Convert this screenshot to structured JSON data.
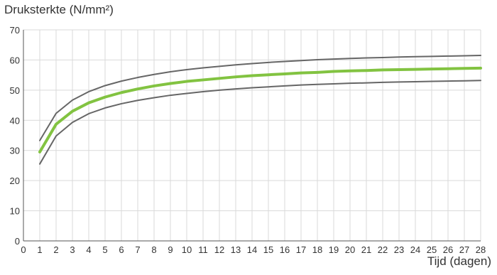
{
  "chart_data": {
    "type": "line",
    "title": "",
    "xlabel": "Tijd (dagen)",
    "ylabel": "Druksterkte (N/mm²)",
    "xlim": [
      0,
      28
    ],
    "ylim": [
      0,
      70
    ],
    "xticks": [
      0,
      1,
      2,
      3,
      4,
      5,
      6,
      7,
      8,
      9,
      10,
      11,
      12,
      13,
      14,
      15,
      16,
      17,
      18,
      19,
      20,
      21,
      22,
      23,
      24,
      25,
      26,
      27,
      28
    ],
    "yticks": [
      0,
      10,
      20,
      30,
      40,
      50,
      60,
      70
    ],
    "grid": true,
    "legend": "none",
    "x": [
      1,
      2,
      3,
      4,
      5,
      6,
      7,
      8,
      9,
      10,
      11,
      12,
      13,
      14,
      15,
      16,
      17,
      18,
      19,
      20,
      21,
      22,
      23,
      24,
      25,
      26,
      27,
      28
    ],
    "series": [
      {
        "color": "#666666",
        "values": [
          33.3,
          42.3,
          46.7,
          49.5,
          51.5,
          53.0,
          54.2,
          55.2,
          56.1,
          56.8,
          57.4,
          57.9,
          58.4,
          58.8,
          59.2,
          59.5,
          59.8,
          60.1,
          60.3,
          60.5,
          60.7,
          60.8,
          61.0,
          61.1,
          61.2,
          61.3,
          61.4,
          61.5
        ]
      },
      {
        "color": "#82c341",
        "values": [
          29.5,
          38.7,
          43.0,
          45.8,
          47.7,
          49.2,
          50.4,
          51.4,
          52.2,
          52.9,
          53.4,
          53.9,
          54.4,
          54.8,
          55.1,
          55.4,
          55.7,
          55.9,
          56.2,
          56.4,
          56.5,
          56.7,
          56.8,
          56.9,
          57.0,
          57.1,
          57.2,
          57.3
        ]
      },
      {
        "color": "#666666",
        "values": [
          25.5,
          34.8,
          39.3,
          42.2,
          44.1,
          45.5,
          46.6,
          47.5,
          48.3,
          48.9,
          49.5,
          50.0,
          50.4,
          50.8,
          51.1,
          51.4,
          51.7,
          51.9,
          52.1,
          52.3,
          52.4,
          52.6,
          52.7,
          52.8,
          52.9,
          53.0,
          53.1,
          53.2
        ]
      }
    ]
  }
}
